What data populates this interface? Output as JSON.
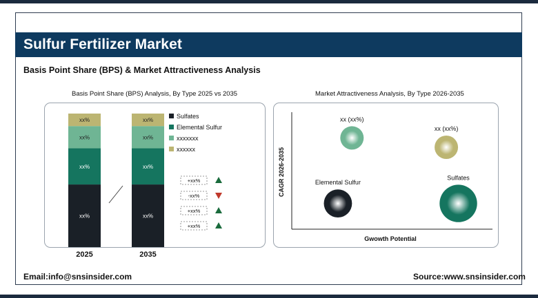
{
  "header": {
    "title": "Sulfur Fertilizer Market",
    "subtitle": "Basis Point Share (BPS) & Market Attractiveness Analysis"
  },
  "left_panel": {
    "title": "Basis Point Share (BPS) Analysis, By Type 2025 vs 2035"
  },
  "right_panel": {
    "title": "Market Attractiveness Analysis, By Type 2026-2035"
  },
  "colors": {
    "sulfates": "#1a2027",
    "elemental_sulfur": "#15755f",
    "xxxxxxx": "#6fb594",
    "xxxxxx": "#bcb572",
    "up": "#1a6b3c",
    "down": "#c0392b"
  },
  "chart_data": [
    {
      "type": "bar",
      "stacked": true,
      "categories": [
        "2025",
        "2035"
      ],
      "series": [
        {
          "name": "Sulfates",
          "values": [
            45,
            45
          ],
          "labels": [
            "xx%",
            "xx%"
          ],
          "color": "#1a2027"
        },
        {
          "name": "Elemental Sulfur",
          "values": [
            26,
            26
          ],
          "labels": [
            "xx%",
            "xx%"
          ],
          "color": "#15755f"
        },
        {
          "name": "xxxxxxx",
          "values": [
            16,
            16
          ],
          "labels": [
            "xx%",
            "xx%"
          ],
          "color": "#6fb594"
        },
        {
          "name": "xxxxxx",
          "values": [
            9,
            9
          ],
          "labels": [
            "xx%",
            "xx%"
          ],
          "color": "#bcb572"
        }
      ],
      "changes": [
        {
          "label": "+xx%",
          "direction": "up"
        },
        {
          "label": "-xx%",
          "direction": "down"
        },
        {
          "label": "+xx%",
          "direction": "up"
        },
        {
          "label": "+xx%",
          "direction": "up"
        }
      ]
    },
    {
      "type": "scatter",
      "xlabel": "Gwowth Potential",
      "ylabel": "CAGR 2026-2035",
      "points": [
        {
          "label": "xx (xx%)",
          "x": 0.3,
          "y": 0.78,
          "size": 1,
          "color": "#6fb594"
        },
        {
          "label": "xx (xx%)",
          "x": 0.77,
          "y": 0.7,
          "size": 1,
          "color": "#bcb572"
        },
        {
          "label": "Elemental Sulfur",
          "x": 0.23,
          "y": 0.22,
          "size": 1.2,
          "color": "#1a2027"
        },
        {
          "label": "Sulfates",
          "x": 0.83,
          "y": 0.22,
          "size": 1.6,
          "color": "#15755f"
        }
      ]
    }
  ],
  "footer": {
    "email": "Email:info@snsinsider.com",
    "source": "Source:www.snsinsider.com"
  }
}
